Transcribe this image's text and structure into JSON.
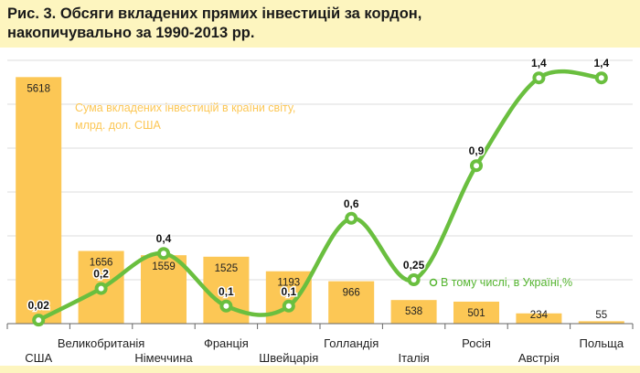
{
  "header": {
    "title_line1": "Рис. 3. Обсяги вкладених прямих інвестицій за кордон,",
    "title_line2": "накопичувально за 1990-2013 рр."
  },
  "colors": {
    "bar": "#fcc755",
    "line": "#6abf3f",
    "bar_legend": "#fcc755",
    "line_legend": "#55b530",
    "header_bg": "#fdf5bf",
    "grid": "#dddddd",
    "axis": "#666666"
  },
  "chart_data": {
    "type": "bar+line",
    "categories": [
      "США",
      "Великобританія",
      "Німеччина",
      "Франція",
      "Швейцарія",
      "Голландія",
      "Італія",
      "Росія",
      "Австрія",
      "Польща"
    ],
    "series": [
      {
        "name": "Сума вкладених інвестицій в країни світу, млрд. дол. США",
        "type": "bar",
        "axis": "left",
        "values": [
          5618,
          1656,
          1559,
          1525,
          1193,
          966,
          538,
          501,
          234,
          55
        ],
        "labels": [
          "5618",
          "1656",
          "1559",
          "1525",
          "1193",
          "966",
          "538",
          "501",
          "234",
          "55"
        ]
      },
      {
        "name": "В тому числі, в Україні,%",
        "type": "line",
        "axis": "right",
        "values": [
          0.02,
          0.2,
          0.4,
          0.1,
          0.1,
          0.6,
          0.25,
          0.9,
          1.4,
          1.4
        ],
        "labels": [
          "0,02",
          "0,2",
          "0,4",
          "0,1",
          "0,1",
          "0,6",
          "0,25",
          "0,9",
          "1,4",
          "1,4"
        ]
      }
    ],
    "legend": {
      "bar_line1": "Сума вкладених інвестицій в країни світу,",
      "bar_line2": "млрд. дол. США",
      "line": "В тому числі, в Україні,%"
    },
    "ylim_left": [
      0,
      6000
    ],
    "ylim_right": [
      0,
      1.5
    ],
    "grid": true
  }
}
